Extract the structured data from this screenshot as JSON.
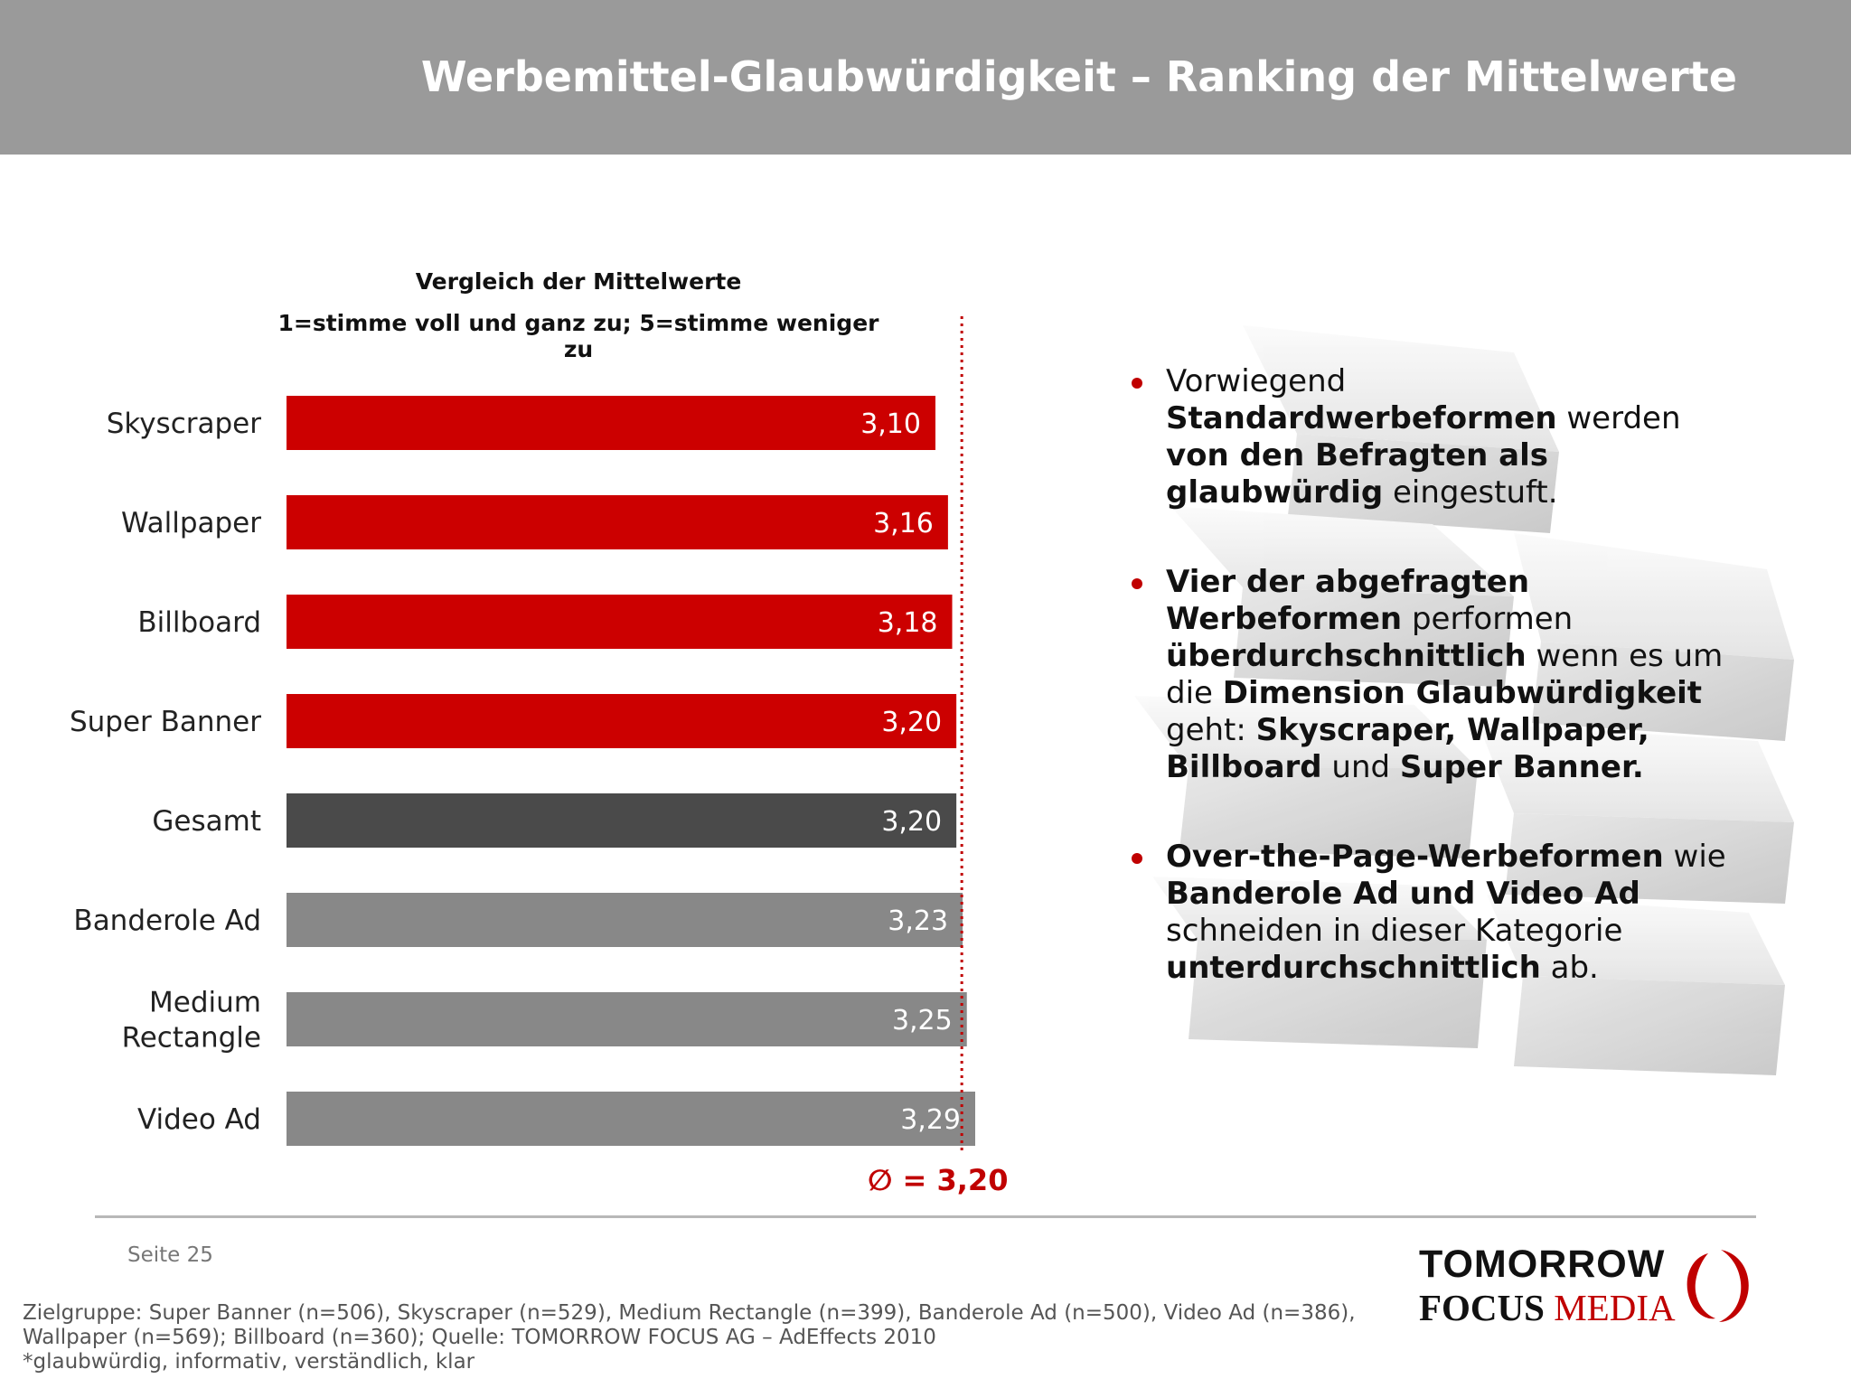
{
  "header": {
    "title": "Werbemittel-Glaubwürdigkeit – Ranking der Mittelwerte"
  },
  "chart_data": {
    "type": "bar",
    "orientation": "horizontal",
    "title": "Vergleich der Mittelwerte",
    "subtitle": "1=stimme voll und ganz zu; 5=stimme weniger zu",
    "categories": [
      "Skyscraper",
      "Wallpaper",
      "Billboard",
      "Super Banner",
      "Gesamt",
      "Banderole Ad",
      "Medium Rectangle",
      "Video Ad"
    ],
    "values": [
      3.1,
      3.16,
      3.18,
      3.2,
      3.2,
      3.23,
      3.25,
      3.29
    ],
    "value_labels": [
      "3,10",
      "3,16",
      "3,18",
      "3,20",
      "3,20",
      "3,23",
      "3,25",
      "3,29"
    ],
    "bar_colors": [
      "#cc0000",
      "#cc0000",
      "#cc0000",
      "#cc0000",
      "#4a4a4a",
      "#888888",
      "#888888",
      "#888888"
    ],
    "reference_line": {
      "value": 3.2,
      "label": "∅ = 3,20",
      "color": "#c00000",
      "style": "dotted"
    },
    "xlim": [
      0,
      3.29
    ],
    "grid": false
  },
  "bullets": [
    [
      {
        "t": "Vorwiegend ",
        "b": false
      },
      {
        "t": "Standardwerbeformen",
        "b": true
      },
      {
        "t": " werden ",
        "b": false
      },
      {
        "t": "von den Befragten als glaubwürdig",
        "b": true
      },
      {
        "t": " eingestuft.",
        "b": false
      }
    ],
    [
      {
        "t": "Vier der abgefragten Werbeformen",
        "b": true
      },
      {
        "t": " performen ",
        "b": false
      },
      {
        "t": "überdurchschnittlich",
        "b": true
      },
      {
        "t": " wenn es um die ",
        "b": false
      },
      {
        "t": "Dimension Glaubwürdigkeit",
        "b": true
      },
      {
        "t": " geht: ",
        "b": false
      },
      {
        "t": "Skyscraper, Wallpaper, Billboard",
        "b": true
      },
      {
        "t": " und ",
        "b": false
      },
      {
        "t": "Super Banner.",
        "b": true
      }
    ],
    [
      {
        "t": "Over-the-Page-Werbeformen",
        "b": true
      },
      {
        "t": " wie ",
        "b": false
      },
      {
        "t": "Banderole Ad und Video Ad",
        "b": true
      },
      {
        "t": " schneiden in dieser Kategorie ",
        "b": false
      },
      {
        "t": "unterdurchschnittlich",
        "b": true
      },
      {
        "t": " ab.",
        "b": false
      }
    ]
  ],
  "footer": {
    "page": "Seite 25",
    "footnote_lines": [
      "Zielgruppe: Super Banner (n=506), Skyscraper (n=529), Medium Rectangle (n=399), Banderole Ad (n=500), Video Ad (n=386),",
      "Wallpaper (n=569); Billboard (n=360); Quelle: TOMORROW FOCUS AG – AdEffects 2010",
      "*glaubwürdig, informativ, verständlich, klar"
    ],
    "logo": {
      "line1": "TOMORROW",
      "focus": "FOCUS",
      "media": "MEDIA"
    }
  },
  "colors": {
    "accent": "#c00000",
    "header": "#9a9a9a"
  }
}
